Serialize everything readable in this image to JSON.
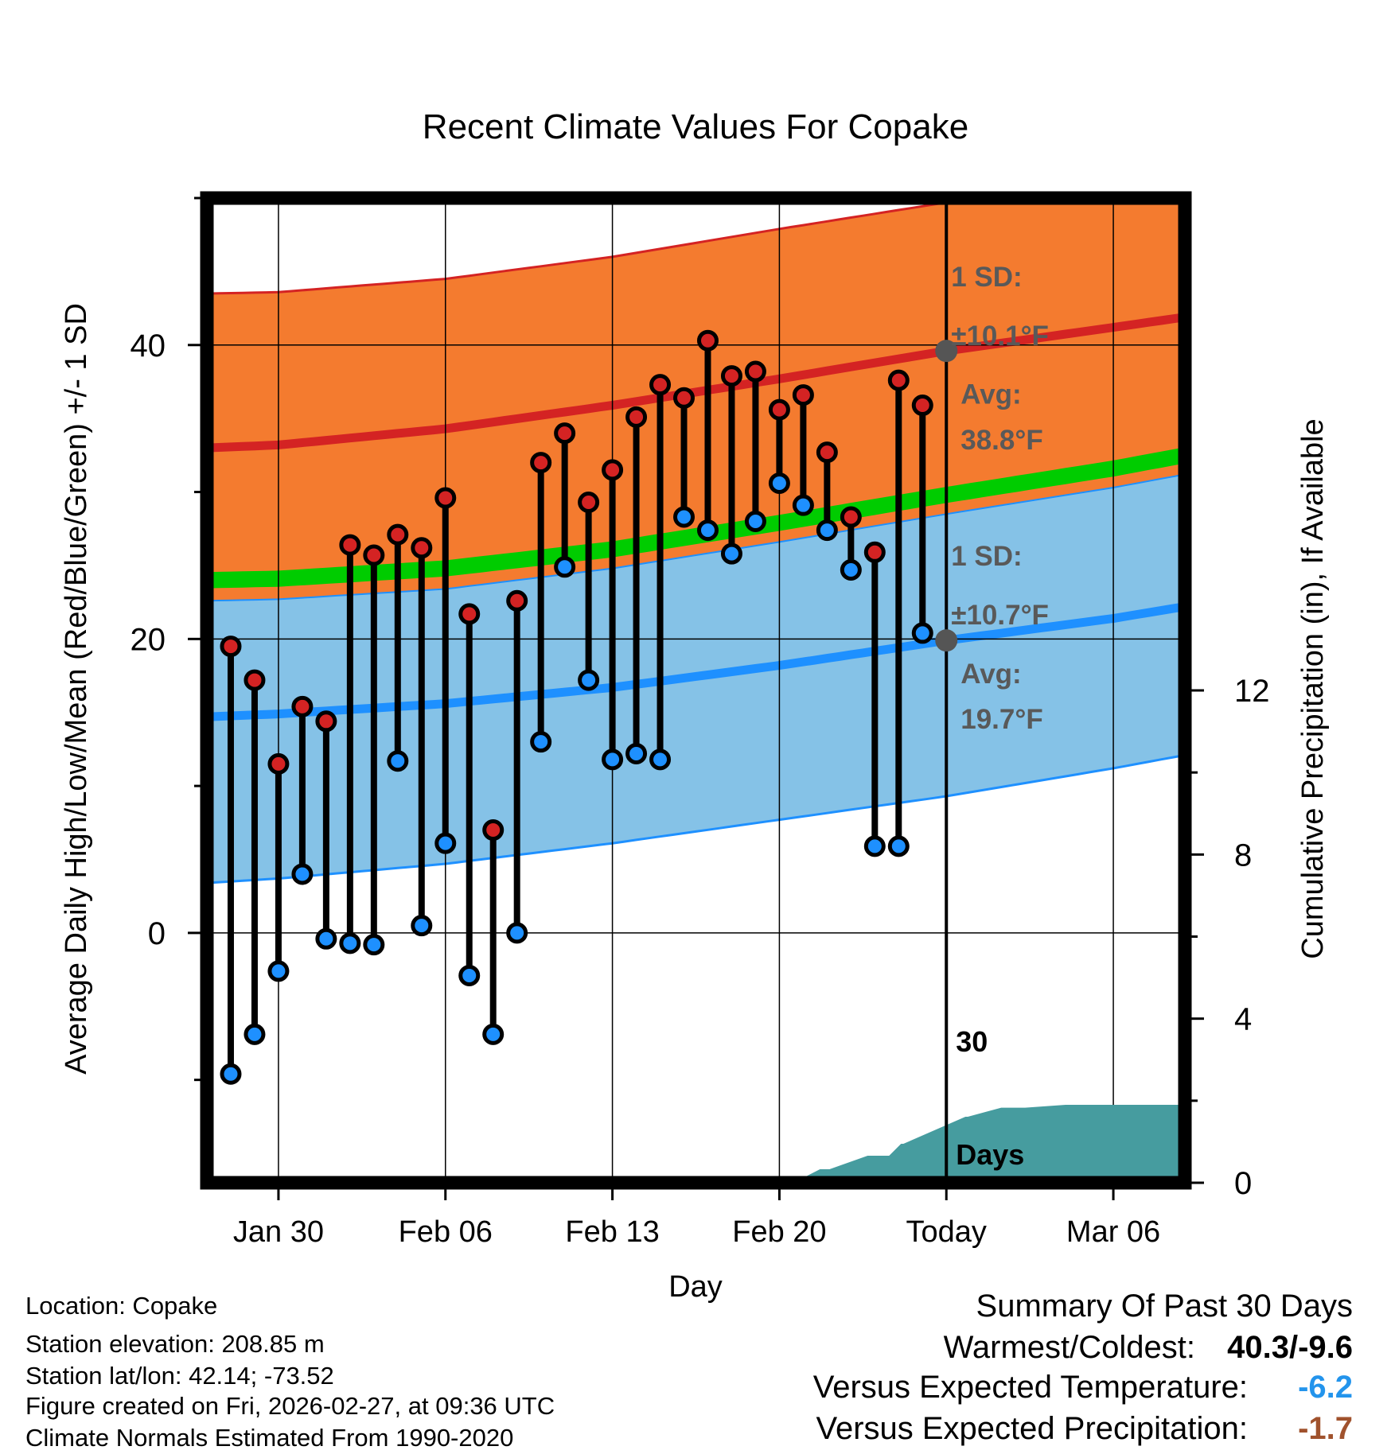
{
  "chart_data": {
    "type": "climate_range",
    "title": "Recent Climate Values For Copake",
    "xlabel": "Day",
    "ylabel_left": "Average Daily High/Low/Mean (Red/Blue/Green) +/- 1 SD",
    "ylabel_right": "Cumulative Precipitation (in), If Available",
    "x_day_range": [
      -3,
      38
    ],
    "ylim_left": [
      -17,
      50
    ],
    "ylim_right": [
      0,
      24
    ],
    "x_ticks": [
      {
        "day": 0,
        "label": "Jan 30"
      },
      {
        "day": 7,
        "label": "Feb 06"
      },
      {
        "day": 14,
        "label": "Feb 13"
      },
      {
        "day": 21,
        "label": "Feb 20"
      },
      {
        "day": 28,
        "label": "Today"
      },
      {
        "day": 35,
        "label": "Mar 06"
      }
    ],
    "y_ticks_left": [
      0,
      20,
      40
    ],
    "y_ticks_right": [
      0,
      4,
      8,
      12
    ],
    "today_day": 28,
    "normals": {
      "days": [
        -3,
        0,
        7,
        14,
        21,
        28,
        35,
        38
      ],
      "high_avg": [
        33.0,
        33.2,
        34.3,
        35.9,
        37.7,
        39.6,
        41.2,
        41.9
      ],
      "high_upper": [
        43.5,
        43.6,
        44.5,
        46.0,
        47.9,
        49.7,
        51.0,
        51.5
      ],
      "low_avg": [
        14.7,
        14.9,
        15.6,
        16.7,
        18.2,
        19.9,
        21.4,
        22.2
      ],
      "low_upper": [
        22.6,
        22.7,
        23.4,
        24.8,
        26.6,
        28.5,
        30.3,
        31.2
      ],
      "low_lower": [
        3.4,
        3.7,
        4.7,
        6.1,
        7.7,
        9.3,
        11.2,
        12.1
      ],
      "mean_avg": [
        24.0,
        24.1,
        24.8,
        26.1,
        27.9,
        29.8,
        31.6,
        32.5
      ]
    },
    "observations": {
      "days": [
        -2,
        -1,
        0,
        1,
        2,
        3,
        4,
        5,
        6,
        7,
        8,
        9,
        10,
        11,
        12,
        13,
        14,
        15,
        16,
        17,
        18,
        19,
        20,
        21,
        22,
        23,
        24,
        25,
        26,
        27,
        28
      ],
      "highs": [
        19.5,
        17.2,
        11.5,
        15.4,
        14.4,
        26.4,
        25.7,
        27.1,
        26.2,
        29.6,
        21.7,
        7.0,
        22.6,
        32.0,
        34.0,
        29.3,
        31.5,
        35.1,
        37.3,
        36.4,
        40.3,
        37.9,
        38.2,
        35.6,
        36.6,
        32.7,
        28.3,
        25.9,
        37.6,
        35.9,
        38.8
      ],
      "lows": [
        -9.6,
        -6.9,
        -2.6,
        4.0,
        -0.4,
        -0.7,
        -0.8,
        11.7,
        0.5,
        6.1,
        -2.9,
        -6.9,
        0.0,
        13.0,
        24.9,
        17.2,
        11.8,
        12.2,
        11.8,
        28.3,
        27.4,
        25.8,
        28.0,
        30.6,
        29.1,
        27.4,
        24.7,
        5.9,
        5.9,
        20.4,
        19.7
      ]
    },
    "precip_cumulative": {
      "days": [
        21.6,
        22.7,
        23.1,
        23.1,
        24.7,
        25.6,
        26.1,
        26.2,
        28.8,
        28.9,
        30.3,
        30.4,
        31.3,
        33.0,
        35.0,
        35.5,
        38.0
      ],
      "values": [
        0,
        0.33,
        0.33,
        0.33,
        0.66,
        0.66,
        0.95,
        0.95,
        1.61,
        1.61,
        1.83,
        1.83,
        1.83,
        1.9,
        1.9,
        1.9,
        1.9
      ]
    },
    "annotations": {
      "high_sd_label": "1 SD:",
      "high_sd_value": "±10.1°F",
      "high_avg_label": "Avg:",
      "high_avg_value": "38.8°F",
      "low_sd_label": "1 SD:",
      "low_sd_value": "±10.7°F",
      "low_avg_label": "Avg:",
      "low_avg_value": "19.7°F",
      "precip_days_num": "30",
      "precip_days_word": "Days"
    },
    "colors": {
      "high_band": "#f47b2f",
      "high_line": "#d42323",
      "low_band": "#85c2e7",
      "low_line": "#1e90ff",
      "mean_band": "#00cc00",
      "overlap": "#990f15",
      "precip": "#469c9f",
      "annotation": "#595959",
      "high_marker": "#d42323",
      "low_marker": "#1e90ff"
    }
  },
  "info": {
    "location": "Location: Copake",
    "elevation": "Station elevation: 208.85 m",
    "latlon": "Station lat/lon: 42.14; -73.52",
    "created": "Figure created on Fri, 2026-02-27, at 09:36 UTC",
    "normals": "Climate Normals Estimated From 1990-2020"
  },
  "summary": {
    "title": "Summary Of Past 30 Days",
    "warm_cold_label": "Warmest/Coldest:",
    "warm_cold_value": "40.3/-9.6",
    "temp_label": "Versus Expected Temperature:",
    "temp_value": "-6.2",
    "temp_color": "#2394ec",
    "precip_label": "Versus Expected Precipitation:",
    "precip_value": "-1.7",
    "precip_color": "#a0522d"
  }
}
